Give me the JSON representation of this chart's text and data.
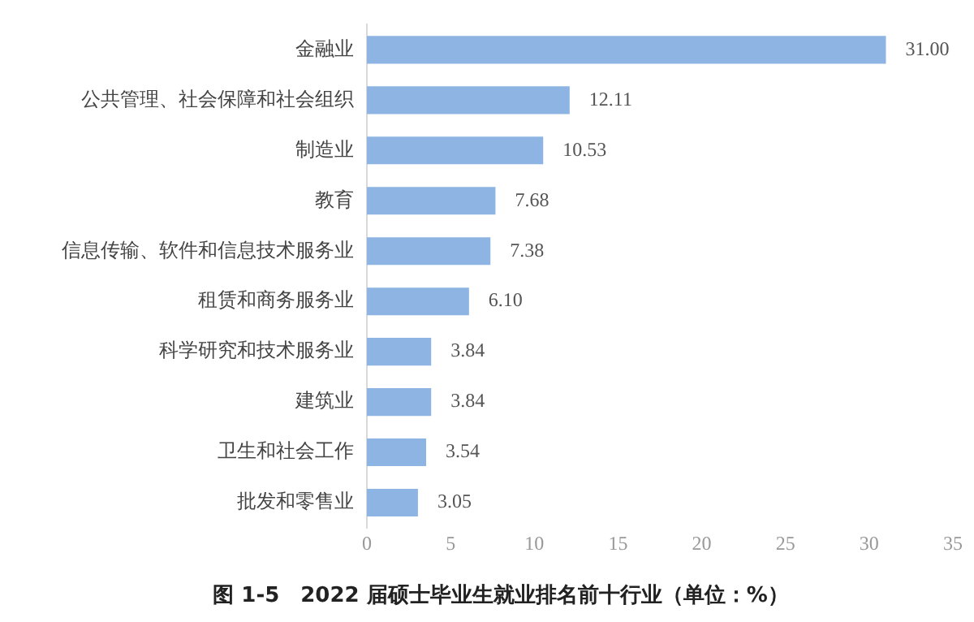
{
  "chart_data": {
    "type": "bar",
    "orientation": "horizontal",
    "title": "图 1-5　2022 届硕士毕业生就业排名前十行业（单位：%）",
    "categories": [
      "金融业",
      "公共管理、社会保障和社会组织",
      "制造业",
      "教育",
      "信息传输、软件和信息技术服务业",
      "租赁和商务服务业",
      "科学研究和技术服务业",
      "建筑业",
      "卫生和社会工作",
      "批发和零售业"
    ],
    "values": [
      31,
      12.11,
      10.53,
      7.68,
      7.38,
      6.1,
      3.84,
      3.84,
      3.54,
      3.05
    ],
    "value_labels": [
      "31.00",
      "12.11",
      "10.53",
      "7.68",
      "7.38",
      "6.10",
      "3.84",
      "3.84",
      "3.54",
      "3.05"
    ],
    "color": "#8db4e2",
    "xlim": [
      0,
      35
    ],
    "xticks": [
      0,
      5,
      10,
      15,
      20,
      25,
      30,
      35
    ],
    "grid": false,
    "legend": false
  }
}
